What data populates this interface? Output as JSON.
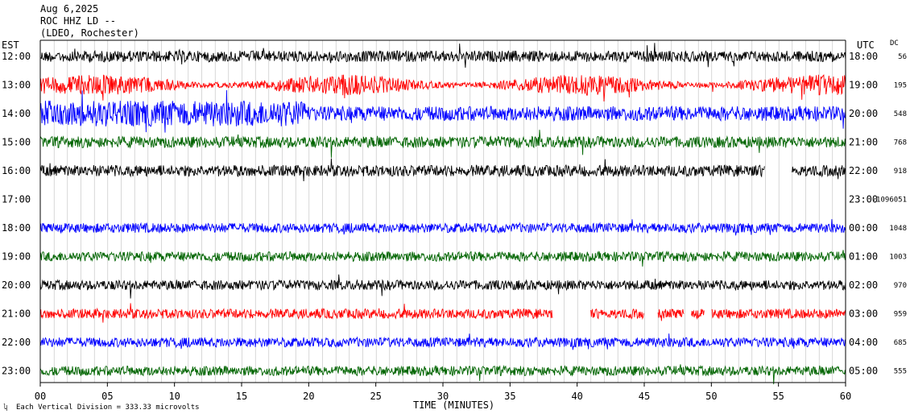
{
  "header": {
    "date": "Aug 6,2025",
    "station": "ROC HHZ LD --",
    "location": "(LDEO, Rochester)"
  },
  "chart_data": {
    "type": "line",
    "title": "",
    "xlabel": "TIME (MINUTES)",
    "xlim": [
      0,
      60
    ],
    "x_ticks": [
      "00",
      "05",
      "10",
      "15",
      "20",
      "25",
      "30",
      "35",
      "40",
      "45",
      "50",
      "55",
      "60"
    ],
    "left_axis_label": "EST",
    "right_axis_label": "UTC",
    "dc_label": "DC",
    "scale_note": "Each Vertical Division =  333.33 microvolts",
    "grid": "vertical-minute-lines",
    "series_colors": [
      "#000000",
      "#ff0000",
      "#0000ff",
      "#006400"
    ],
    "rows": [
      {
        "est": "12:00",
        "utc": "18:00",
        "dc": "56",
        "color": "#000000",
        "amp": 7,
        "gaps": []
      },
      {
        "est": "13:00",
        "utc": "19:00",
        "dc": "195",
        "color": "#ff0000",
        "amp": 8,
        "gaps": []
      },
      {
        "est": "14:00",
        "utc": "20:00",
        "dc": "548",
        "color": "#0000ff",
        "amp": 9,
        "gaps": []
      },
      {
        "est": "15:00",
        "utc": "21:00",
        "dc": "768",
        "color": "#006400",
        "amp": 7,
        "gaps": []
      },
      {
        "est": "16:00",
        "utc": "22:00",
        "dc": "918",
        "color": "#000000",
        "amp": 7,
        "gaps": [
          [
            54,
            56
          ]
        ]
      },
      {
        "est": "17:00",
        "utc": "23:00",
        "dc": "-1096051",
        "color": "#ff0000",
        "amp": 0,
        "gaps": [
          [
            0,
            60
          ]
        ]
      },
      {
        "est": "18:00",
        "utc": "00:00",
        "dc": "1048",
        "color": "#0000ff",
        "amp": 6,
        "gaps": []
      },
      {
        "est": "19:00",
        "utc": "01:00",
        "dc": "1003",
        "color": "#006400",
        "amp": 6,
        "gaps": []
      },
      {
        "est": "20:00",
        "utc": "02:00",
        "dc": "970",
        "color": "#000000",
        "amp": 6,
        "gaps": []
      },
      {
        "est": "21:00",
        "utc": "03:00",
        "dc": "959",
        "color": "#ff0000",
        "amp": 6,
        "gaps": [
          [
            38.2,
            41
          ],
          [
            45,
            46
          ],
          [
            48,
            48.5
          ],
          [
            49.5,
            50
          ]
        ]
      },
      {
        "est": "22:00",
        "utc": "04:00",
        "dc": "685",
        "color": "#0000ff",
        "amp": 6,
        "gaps": []
      },
      {
        "est": "23:00",
        "utc": "05:00",
        "dc": "555",
        "color": "#006400",
        "amp": 6,
        "gaps": []
      }
    ]
  }
}
